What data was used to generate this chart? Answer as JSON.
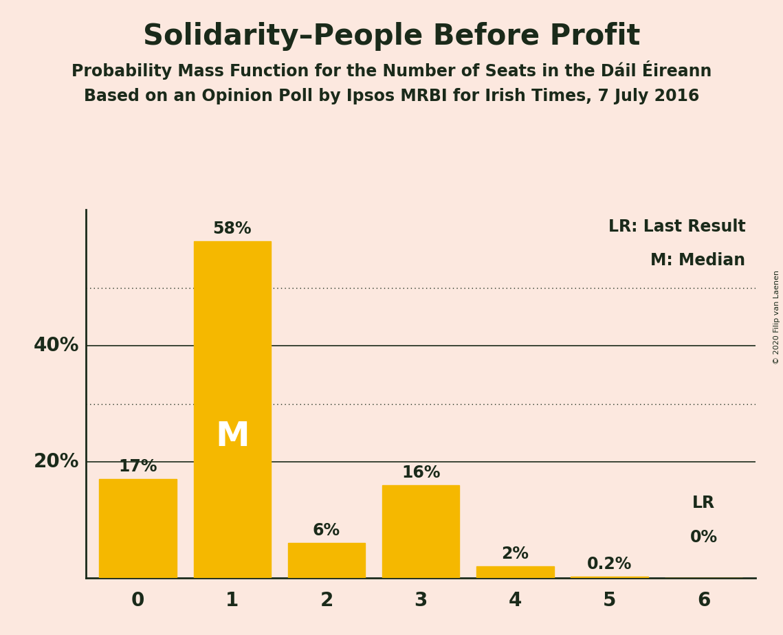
{
  "title": "Solidarity–People Before Profit",
  "subtitle1": "Probability Mass Function for the Number of Seats in the Dáil Éireann",
  "subtitle2": "Based on an Opinion Poll by Ipsos MRBI for Irish Times, 7 July 2016",
  "copyright": "© 2020 Filip van Laenen",
  "categories": [
    0,
    1,
    2,
    3,
    4,
    5,
    6
  ],
  "values": [
    0.17,
    0.58,
    0.06,
    0.16,
    0.02,
    0.002,
    0.0
  ],
  "bar_labels": [
    "17%",
    "58%",
    "6%",
    "16%",
    "2%",
    "0.2%",
    "0%"
  ],
  "bar_color": "#F5B800",
  "bg_color": "#fce8df",
  "text_color": "#1a2a1a",
  "median_bar": 1,
  "lr_bar": 6,
  "dotted_lines": [
    0.3,
    0.5
  ],
  "solid_lines": [
    0.2,
    0.4
  ],
  "ylim": [
    0,
    0.635
  ],
  "legend_lr": "LR: Last Result",
  "legend_m": "M: Median",
  "title_fontsize": 30,
  "subtitle_fontsize": 17,
  "label_fontsize": 17,
  "axis_fontsize": 20,
  "bar_width": 0.82
}
